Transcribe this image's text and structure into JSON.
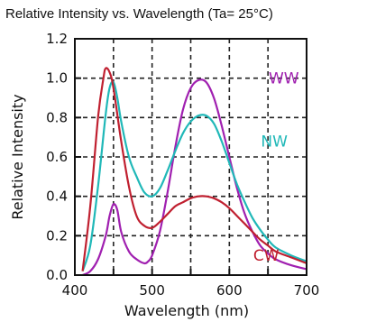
{
  "chart_data": {
    "type": "line",
    "title": "Relative Intensity vs.  Wavelength (Ta= 25°C)",
    "xlabel": "Wavelength (nm)",
    "ylabel": "Relative Intensity",
    "xlim": [
      400,
      700
    ],
    "ylim": [
      0.0,
      1.2
    ],
    "x_ticks": [
      400,
      500,
      600,
      700
    ],
    "y_ticks": [
      "0.0",
      "0.2",
      "0.4",
      "0.6",
      "0.8",
      "1.0",
      "1.2"
    ],
    "grid": true,
    "series": [
      {
        "name": "WW",
        "color": "#a020b0",
        "points": [
          [
            410,
            0.0
          ],
          [
            420,
            0.02
          ],
          [
            430,
            0.08
          ],
          [
            440,
            0.2
          ],
          [
            445,
            0.3
          ],
          [
            450,
            0.36
          ],
          [
            455,
            0.33
          ],
          [
            460,
            0.22
          ],
          [
            470,
            0.12
          ],
          [
            480,
            0.08
          ],
          [
            490,
            0.06
          ],
          [
            495,
            0.07
          ],
          [
            500,
            0.1
          ],
          [
            510,
            0.22
          ],
          [
            520,
            0.42
          ],
          [
            530,
            0.65
          ],
          [
            540,
            0.84
          ],
          [
            550,
            0.95
          ],
          [
            560,
            0.99
          ],
          [
            570,
            0.98
          ],
          [
            580,
            0.9
          ],
          [
            590,
            0.76
          ],
          [
            600,
            0.6
          ],
          [
            610,
            0.44
          ],
          [
            620,
            0.31
          ],
          [
            630,
            0.22
          ],
          [
            640,
            0.15
          ],
          [
            650,
            0.11
          ],
          [
            660,
            0.08
          ],
          [
            680,
            0.05
          ],
          [
            700,
            0.03
          ]
        ]
      },
      {
        "name": "NW",
        "color": "#20b8b8",
        "points": [
          [
            410,
            0.02
          ],
          [
            420,
            0.15
          ],
          [
            430,
            0.45
          ],
          [
            440,
            0.82
          ],
          [
            445,
            0.95
          ],
          [
            450,
            0.98
          ],
          [
            455,
            0.9
          ],
          [
            460,
            0.78
          ],
          [
            470,
            0.6
          ],
          [
            480,
            0.5
          ],
          [
            490,
            0.42
          ],
          [
            500,
            0.4
          ],
          [
            510,
            0.44
          ],
          [
            520,
            0.53
          ],
          [
            530,
            0.63
          ],
          [
            540,
            0.72
          ],
          [
            550,
            0.78
          ],
          [
            560,
            0.81
          ],
          [
            570,
            0.81
          ],
          [
            580,
            0.77
          ],
          [
            590,
            0.68
          ],
          [
            600,
            0.57
          ],
          [
            610,
            0.46
          ],
          [
            620,
            0.37
          ],
          [
            630,
            0.29
          ],
          [
            640,
            0.23
          ],
          [
            650,
            0.18
          ],
          [
            660,
            0.14
          ],
          [
            680,
            0.1
          ],
          [
            700,
            0.07
          ]
        ]
      },
      {
        "name": "CW",
        "color": "#c02030",
        "points": [
          [
            410,
            0.02
          ],
          [
            420,
            0.35
          ],
          [
            430,
            0.8
          ],
          [
            437,
            1.0
          ],
          [
            440,
            1.05
          ],
          [
            445,
            1.03
          ],
          [
            450,
            0.95
          ],
          [
            460,
            0.68
          ],
          [
            470,
            0.45
          ],
          [
            480,
            0.3
          ],
          [
            490,
            0.25
          ],
          [
            500,
            0.24
          ],
          [
            510,
            0.27
          ],
          [
            520,
            0.31
          ],
          [
            530,
            0.35
          ],
          [
            540,
            0.37
          ],
          [
            550,
            0.39
          ],
          [
            560,
            0.4
          ],
          [
            570,
            0.4
          ],
          [
            580,
            0.39
          ],
          [
            590,
            0.37
          ],
          [
            600,
            0.34
          ],
          [
            610,
            0.3
          ],
          [
            620,
            0.26
          ],
          [
            630,
            0.22
          ],
          [
            640,
            0.18
          ],
          [
            650,
            0.15
          ],
          [
            660,
            0.12
          ],
          [
            680,
            0.09
          ],
          [
            700,
            0.06
          ]
        ]
      }
    ],
    "series_label_positions": {
      "WW": [
        700,
        1.0
      ],
      "NW": [
        690,
        0.68
      ],
      "CW": [
        680,
        0.1
      ]
    }
  }
}
